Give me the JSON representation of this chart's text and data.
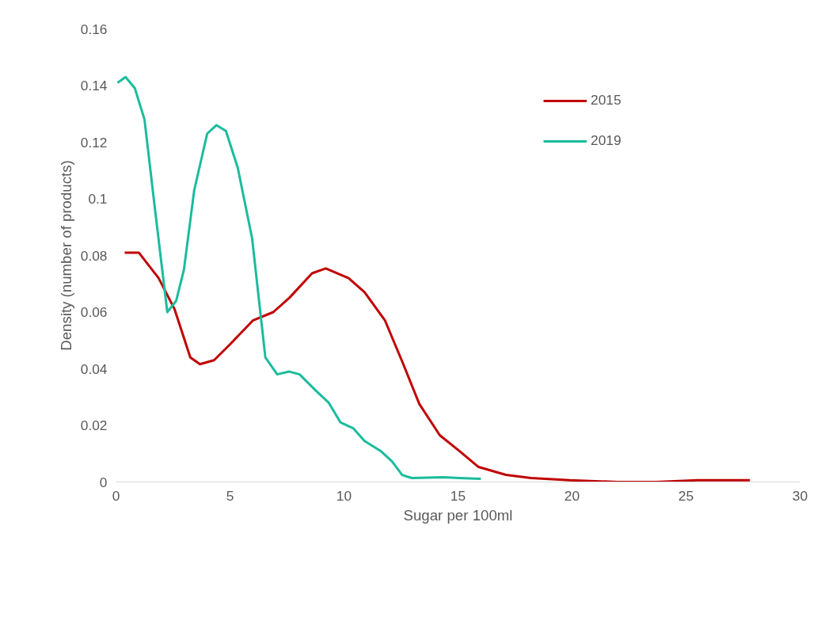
{
  "chart_data": {
    "type": "line",
    "xlabel": "Sugar per 100ml",
    "ylabel": "Density (number of products)",
    "xlim": [
      0,
      30
    ],
    "xticks": [
      0,
      5,
      10,
      15,
      20,
      25,
      30
    ],
    "ylim": [
      0,
      0.16
    ],
    "yticks": [
      0,
      0.02,
      0.04,
      0.06,
      0.08,
      0.1,
      0.12,
      0.14,
      0.16
    ],
    "grid": false,
    "legend": "right",
    "marker": "none",
    "line_style": "solid",
    "series": [
      {
        "name": "2015",
        "color": "#c00000",
        "x": [
          0.38,
          1.0,
          1.87,
          2.57,
          3.26,
          3.68,
          4.3,
          5.0,
          6.0,
          6.9,
          7.6,
          8.6,
          9.2,
          10.2,
          10.9,
          11.8,
          12.6,
          13.3,
          14.2,
          15.05,
          15.9,
          17.1,
          18.2,
          19.9,
          22.0,
          23.7,
          25.5,
          27.8
        ],
        "values": [
          0.081,
          0.081,
          0.072,
          0.061,
          0.044,
          0.0416,
          0.043,
          0.0486,
          0.057,
          0.06,
          0.065,
          0.0737,
          0.0754,
          0.072,
          0.067,
          0.057,
          0.0416,
          0.0276,
          0.0165,
          0.011,
          0.0053,
          0.0025,
          0.0014,
          0.0006,
          0,
          0,
          0.0006,
          0.0006
        ]
      },
      {
        "name": "2019",
        "color": "#1abc9c",
        "x": [
          0.07,
          0.42,
          0.83,
          1.25,
          1.7,
          2.25,
          2.64,
          2.98,
          3.43,
          4.0,
          4.4,
          4.82,
          5.34,
          5.97,
          6.55,
          7.07,
          7.6,
          8.05,
          8.8,
          9.33,
          9.85,
          10.4,
          10.9,
          11.6,
          12.1,
          12.55,
          12.97,
          14.36,
          15.05,
          16.0
        ],
        "values": [
          0.141,
          0.143,
          0.139,
          0.128,
          0.097,
          0.06,
          0.064,
          0.075,
          0.103,
          0.123,
          0.126,
          0.124,
          0.111,
          0.086,
          0.044,
          0.038,
          0.039,
          0.038,
          0.032,
          0.028,
          0.021,
          0.019,
          0.0145,
          0.011,
          0.0073,
          0.0025,
          0.0014,
          0.0017,
          0.0014,
          0.0011
        ]
      }
    ]
  }
}
